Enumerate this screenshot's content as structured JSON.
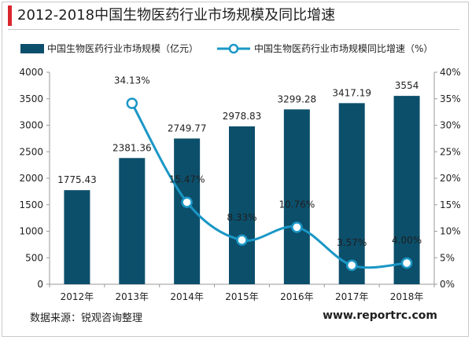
{
  "header": {
    "title": "2012-2018中国生物医药行业市场规模及同比增速"
  },
  "footer": {
    "source": "数据来源：锐观咨询整理",
    "website": "www.reportrc.com"
  },
  "colors": {
    "bar": "#0c4f6b",
    "line": "#1a97c6",
    "accent": "#d9272e",
    "axis": "#9a9a9a",
    "text": "#1f1f1f"
  },
  "chart_data": {
    "type": "bar",
    "categories": [
      "2012年",
      "2013年",
      "2014年",
      "2015年",
      "2016年",
      "2017年",
      "2018年"
    ],
    "series": [
      {
        "name": "中国生物医药行业市场规模（亿元）",
        "type": "bar",
        "axis": "left",
        "values": [
          1775.43,
          2381.36,
          2749.77,
          2978.83,
          3299.28,
          3417.19,
          3554
        ],
        "labels": [
          "1775.43",
          "2381.36",
          "2749.77",
          "2978.83",
          "3299.28",
          "3417.19",
          "3554"
        ]
      },
      {
        "name": "中国生物医药行业市场规模同比增速（%）",
        "type": "line",
        "axis": "right",
        "values": [
          null,
          34.13,
          15.47,
          8.33,
          10.76,
          3.57,
          4.0
        ],
        "labels": [
          "",
          "34.13%",
          "15.47%",
          "8.33%",
          "10.76%",
          "3.57%",
          "4.00%"
        ]
      }
    ],
    "ylim_left": [
      0,
      4000
    ],
    "ylim_right": [
      0,
      40
    ],
    "left_ticks": [
      "0",
      "500",
      "1000",
      "1500",
      "2000",
      "2500",
      "3000",
      "3500",
      "4000"
    ],
    "right_ticks": [
      "0%",
      "5%",
      "10%",
      "15%",
      "20%",
      "25%",
      "30%",
      "35%",
      "40%"
    ],
    "grid": false,
    "legend_position": "top-left"
  }
}
